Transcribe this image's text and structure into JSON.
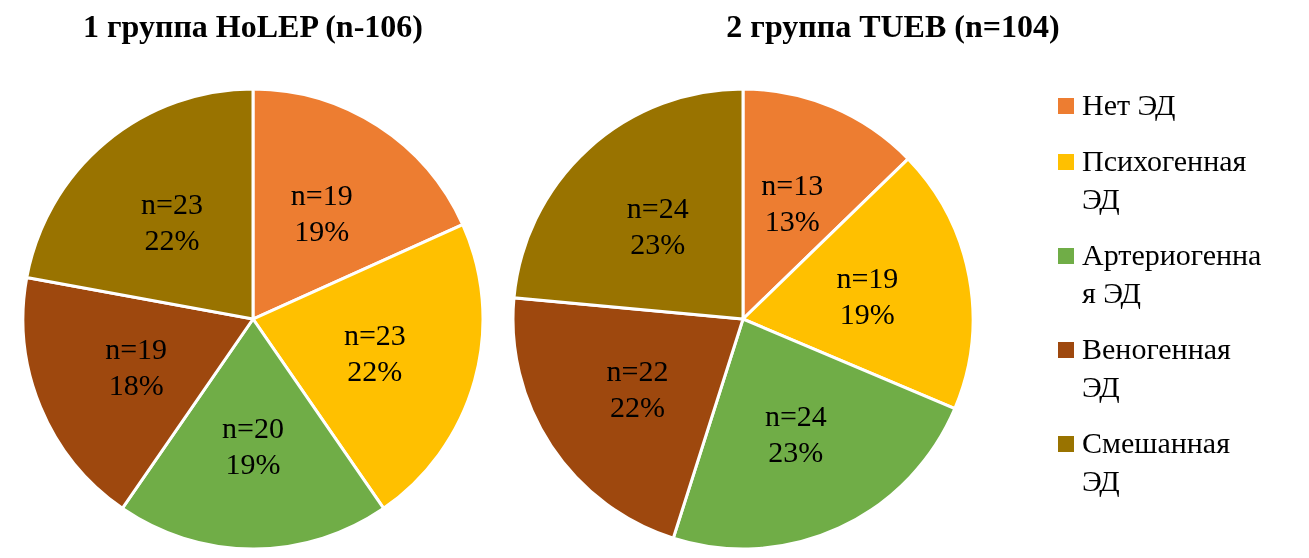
{
  "chart_data": [
    {
      "type": "pie",
      "title": "1 группа HoLEP (n-106)",
      "categories": [
        null,
        null,
        null,
        null,
        null
      ],
      "values": [
        19,
        23,
        20,
        19,
        23
      ],
      "colors": [
        "#ed7d31",
        "#ffc000",
        "#70ad47",
        "#9e480e",
        "#997300"
      ],
      "value_labels": [
        "n=19\n19%",
        "n=23\n22%",
        "n=20\n19%",
        "n=19\n18%",
        "n=23\n22%"
      ],
      "legend": false
    },
    {
      "type": "pie",
      "title": "2 группа TUEB (n=104)",
      "categories": [
        "Нет ЭД",
        "Психогенная ЭД",
        "Артериогенная ЭД",
        "Веногенная ЭД",
        "Смешанная ЭД"
      ],
      "values": [
        13,
        19,
        24,
        22,
        24
      ],
      "colors": [
        "#ed7d31",
        "#ffc000",
        "#70ad47",
        "#9e480e",
        "#997300"
      ],
      "value_labels": [
        "n=13\n13%",
        "n=19\n19%",
        "n=24\n23%",
        "n=22\n22%",
        "n=24\n23%"
      ],
      "legend": "right"
    }
  ]
}
